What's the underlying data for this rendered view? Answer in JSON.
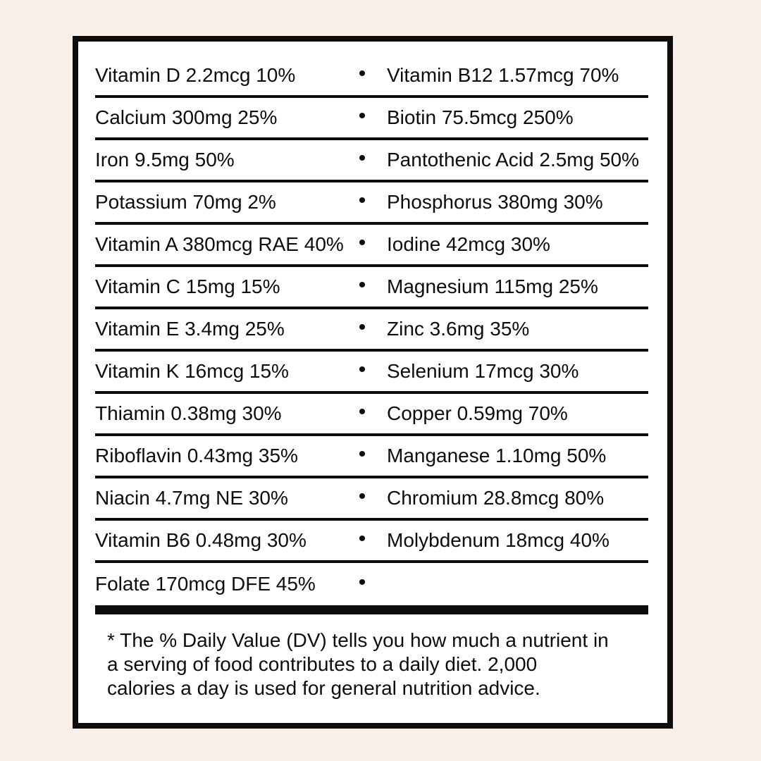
{
  "colors": {
    "background": "#f7efe8",
    "panel_background": "#ffffff",
    "ink": "#0d0d0d"
  },
  "table": {
    "bullet": "•",
    "rows": [
      {
        "left": "Vitamin D 2.2mcg 10%",
        "right": "Vitamin B12 1.57mcg 70%"
      },
      {
        "left": "Calcium 300mg 25%",
        "right": "Biotin 75.5mcg 250%"
      },
      {
        "left": "Iron 9.5mg 50%",
        "right": "Pantothenic Acid 2.5mg 50%"
      },
      {
        "left": "Potassium 70mg 2%",
        "right": "Phosphorus 380mg 30%"
      },
      {
        "left": "Vitamin A 380mcg RAE 40%",
        "right": "Iodine 42mcg 30%"
      },
      {
        "left": "Vitamin C 15mg 15%",
        "right": "Magnesium 115mg 25%"
      },
      {
        "left": "Vitamin E 3.4mg 25%",
        "right": "Zinc 3.6mg 35%"
      },
      {
        "left": "Vitamin K 16mcg 15%",
        "right": "Selenium 17mcg 30%"
      },
      {
        "left": "Thiamin 0.38mg 30%",
        "right": "Copper 0.59mg 70%"
      },
      {
        "left": "Riboflavin 0.43mg 35%",
        "right": "Manganese 1.10mg 50%"
      },
      {
        "left": "Niacin 4.7mg NE 30%",
        "right": "Chromium 28.8mcg 80%"
      },
      {
        "left": "Vitamin B6 0.48mg 30%",
        "right": "Molybdenum 18mcg 40%"
      },
      {
        "left": "Folate 170mcg DFE 45%",
        "right": ""
      }
    ]
  },
  "footnote": {
    "lines": [
      "* The % Daily Value (DV) tells you how much a nutrient in",
      "a serving of food contributes to a daily diet. 2,000",
      "calories a day is used for general nutrition advice."
    ]
  }
}
